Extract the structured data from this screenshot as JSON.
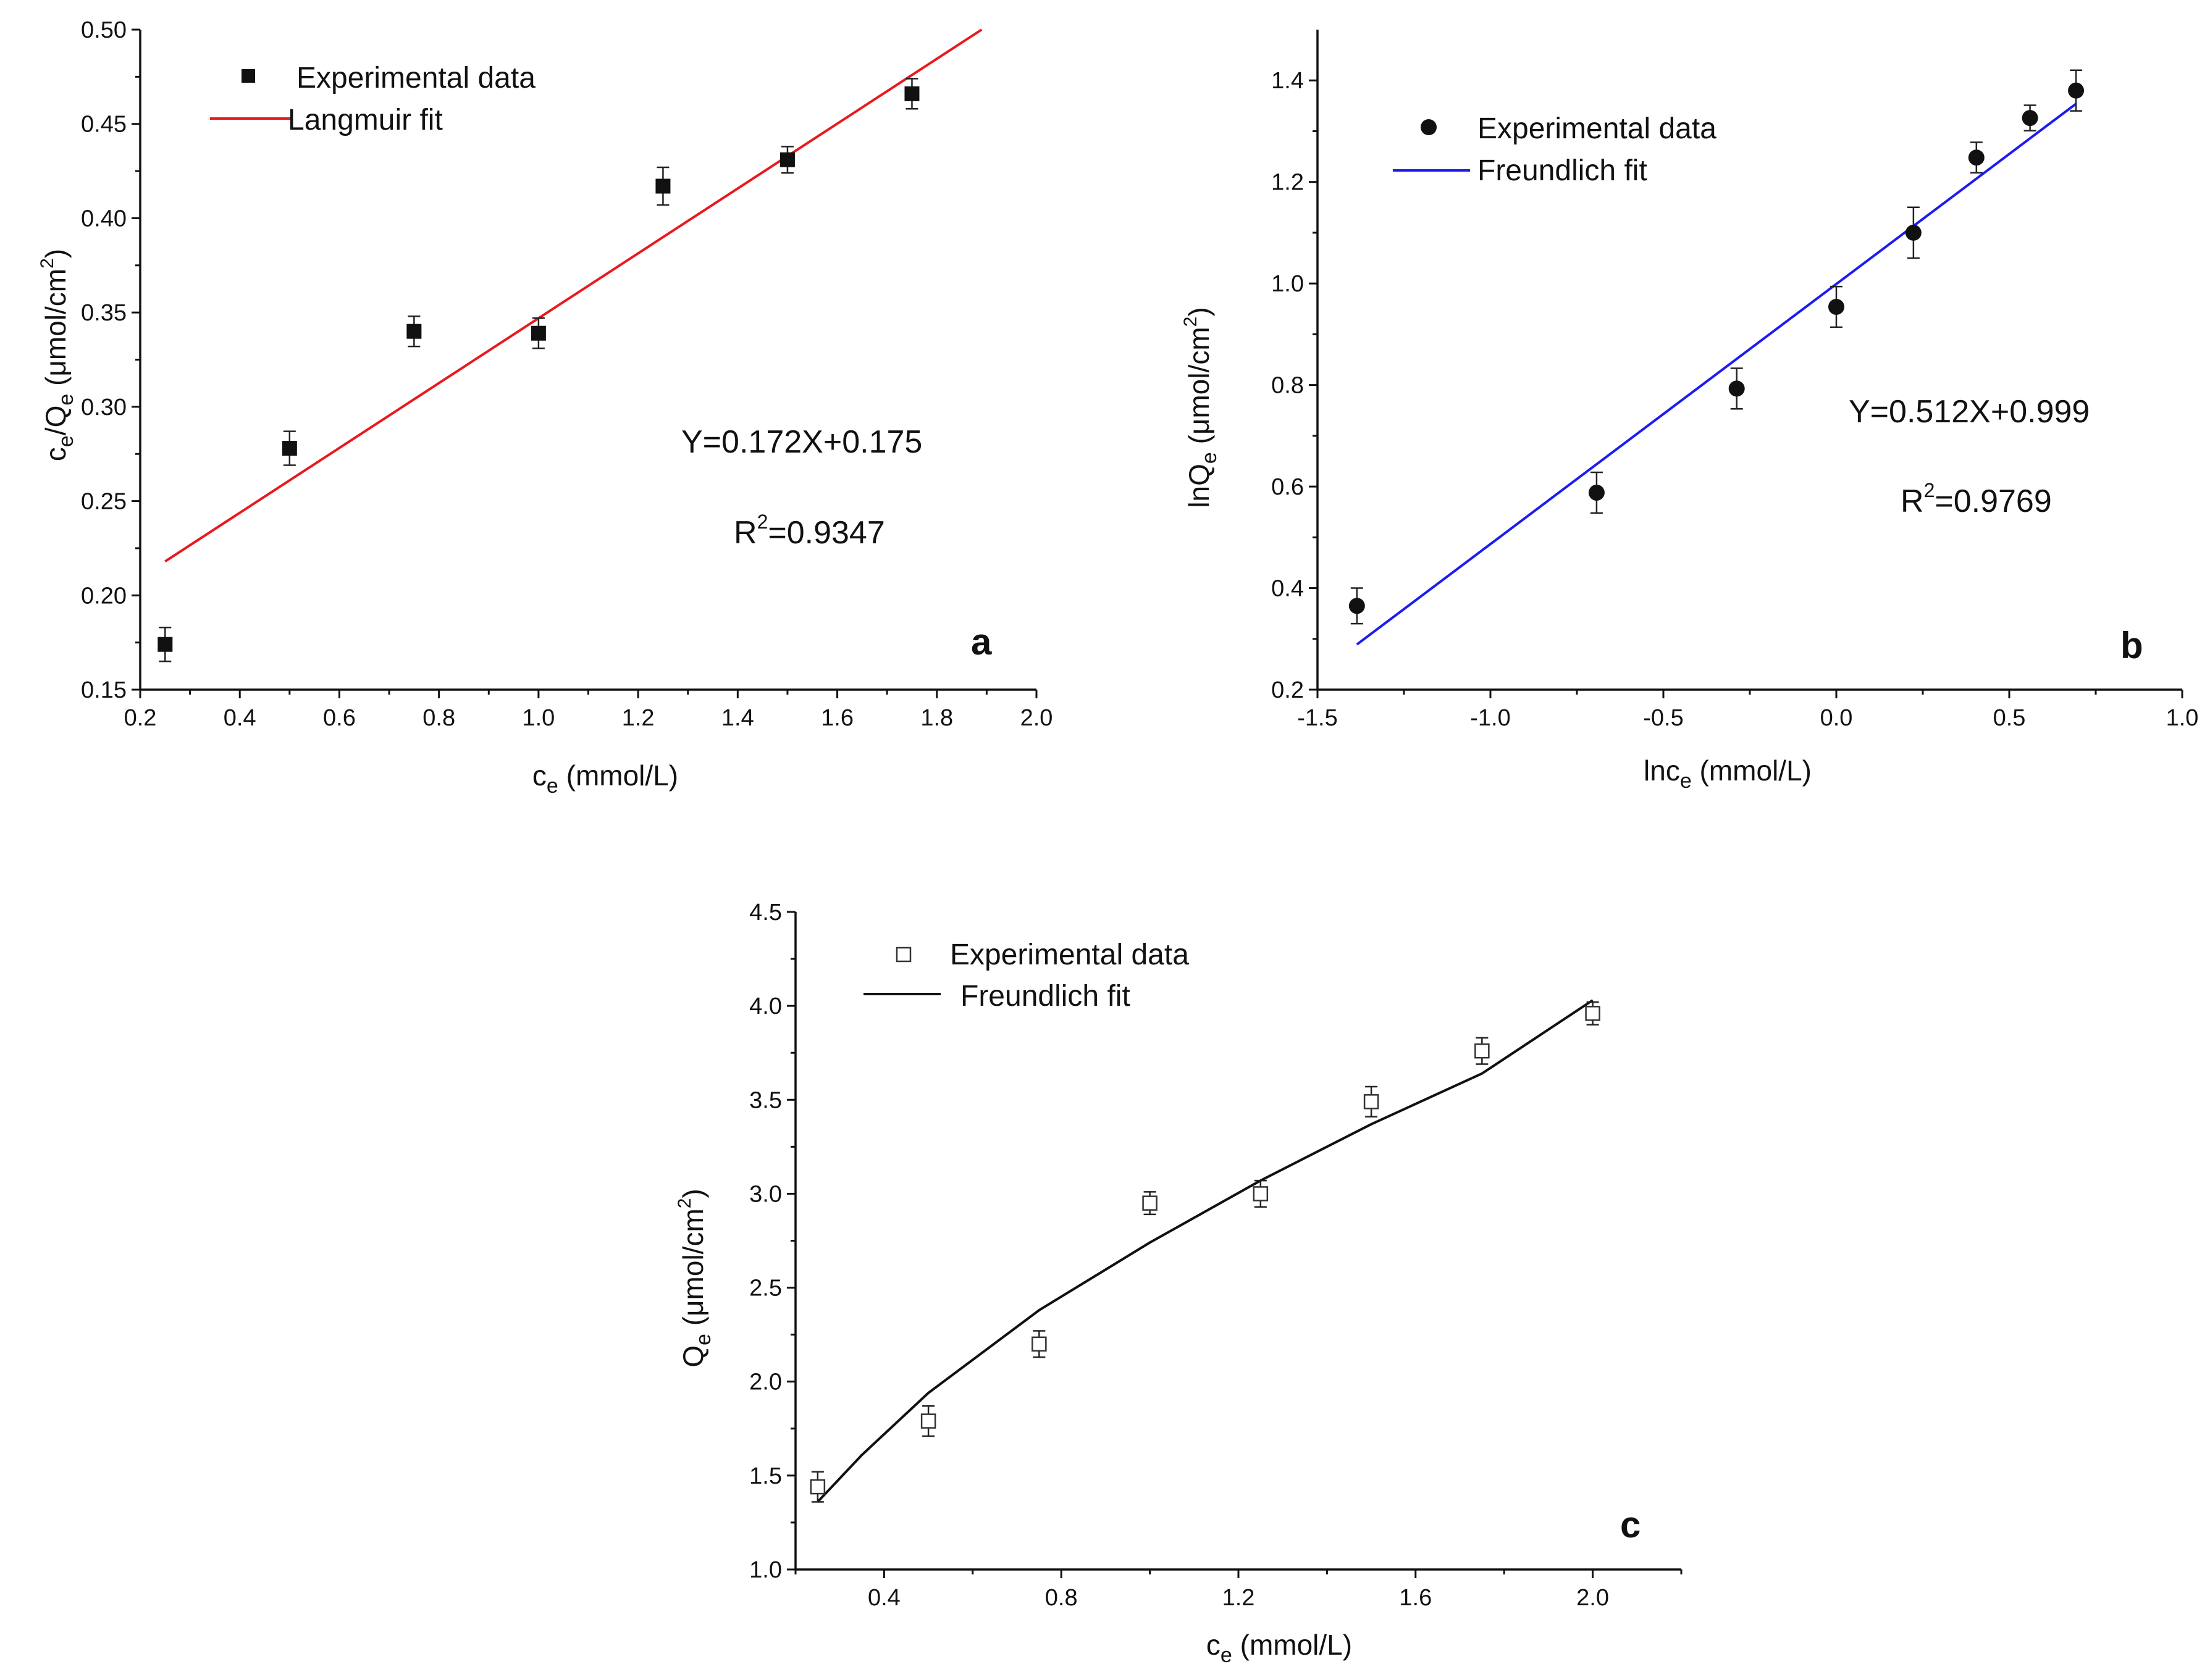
{
  "chart_data": [
    {
      "id": "a",
      "type": "scatter",
      "panel_letter": "a",
      "xlabel": {
        "base": "c",
        "sub": "e",
        "rest": " (mmol/L)"
      },
      "ylabel": {
        "a": "c",
        "a_sub": "e",
        "b": "/Q",
        "b_sub": "e",
        "c": " (μmol/cm",
        "c_sup": "2",
        "d": ")"
      },
      "xlim": [
        0.2,
        2.0
      ],
      "ylim": [
        0.15,
        0.5
      ],
      "xticks": [
        "0.2",
        "0.4",
        "0.6",
        "0.8",
        "1.0",
        "1.2",
        "1.4",
        "1.6",
        "1.8",
        "2.0"
      ],
      "yticks": [
        "0.15",
        "0.20",
        "0.25",
        "0.30",
        "0.35",
        "0.40",
        "0.45",
        "0.50"
      ],
      "legend": {
        "position": "top-left",
        "data_label": "Experimental data",
        "fit_label": "Langmuir fit"
      },
      "marker": "filled-square",
      "line_color": "#e8191e",
      "series": [
        {
          "name": "Experimental data",
          "x": [
            0.25,
            0.5,
            0.75,
            1.0,
            1.25,
            1.5,
            1.75
          ],
          "y": [
            0.174,
            0.278,
            0.34,
            0.339,
            0.417,
            0.431,
            0.466
          ],
          "err": [
            0.009,
            0.009,
            0.008,
            0.008,
            0.01,
            0.007,
            0.008
          ]
        },
        {
          "name": "Langmuir fit",
          "x": [
            0.25,
            1.89
          ],
          "y": [
            0.218,
            0.5
          ]
        }
      ],
      "annotations": {
        "equation": "Y=0.172X+0.175",
        "r2_label": "R",
        "r2_sup": "2",
        "r2_value": "=0.9347"
      }
    },
    {
      "id": "b",
      "type": "scatter",
      "panel_letter": "b",
      "xlabel": {
        "base": "lnc",
        "sub": "e",
        "rest": " (mmol/L)"
      },
      "ylabel": {
        "a": "lnQ",
        "a_sub": "e",
        "c": " (μmol/cm",
        "c_sup": "2",
        "d": ")"
      },
      "xlim": [
        -1.5,
        1.0
      ],
      "ylim": [
        0.2,
        1.5
      ],
      "xticks": [
        "-1.5",
        "-1.0",
        "-0.5",
        "0.0",
        "0.5",
        "1.0"
      ],
      "yticks": [
        "0.2",
        "0.4",
        "0.6",
        "0.8",
        "1.0",
        "1.2",
        "1.4"
      ],
      "legend": {
        "position": "top-left",
        "data_label": "Experimental data",
        "fit_label": "Freundlich fit"
      },
      "marker": "filled-circle",
      "line_color": "#1c1cf0",
      "series": [
        {
          "name": "Experimental data",
          "x": [
            -1.386,
            -0.693,
            -0.288,
            0.0,
            0.223,
            0.405,
            0.56,
            0.693
          ],
          "y": [
            0.365,
            0.588,
            0.793,
            0.954,
            1.1,
            1.248,
            1.326,
            1.38
          ],
          "err": [
            0.035,
            0.04,
            0.04,
            0.04,
            0.05,
            0.03,
            0.025,
            0.04
          ]
        },
        {
          "name": "Freundlich fit",
          "x": [
            -1.386,
            0.693
          ],
          "y": [
            0.289,
            1.354
          ]
        }
      ],
      "annotations": {
        "equation": "Y=0.512X+0.999",
        "r2_label": "R",
        "r2_sup": "2",
        "r2_value": "=0.9769"
      }
    },
    {
      "id": "c",
      "type": "scatter",
      "panel_letter": "c",
      "xlabel": {
        "base": "c",
        "sub": "e",
        "rest": " (mmol/L)"
      },
      "ylabel": {
        "a": "Q",
        "a_sub": "e",
        "c": " (μmol/cm",
        "c_sup": "2",
        "d": ")"
      },
      "xlim": [
        0.2,
        2.2
      ],
      "ylim": [
        1.0,
        4.5
      ],
      "xticks": [
        "0.4",
        "0.8",
        "1.2",
        "1.6",
        "2.0"
      ],
      "yticks": [
        "1.0",
        "1.5",
        "2.0",
        "2.5",
        "3.0",
        "3.5",
        "4.0",
        "4.5"
      ],
      "legend": {
        "position": "top-left",
        "data_label": "Experimental data",
        "fit_label": "Freundlich fit"
      },
      "marker": "open-square",
      "line_color": "#111111",
      "series": [
        {
          "name": "Experimental data",
          "x": [
            0.25,
            0.5,
            0.75,
            1.0,
            1.25,
            1.5,
            1.75,
            2.0
          ],
          "y": [
            1.44,
            1.79,
            2.2,
            2.95,
            3.0,
            3.49,
            3.76,
            3.96
          ],
          "err": [
            0.08,
            0.08,
            0.07,
            0.06,
            0.07,
            0.08,
            0.07,
            0.06
          ]
        },
        {
          "name": "Freundlich fit",
          "x": [
            0.25,
            0.35,
            0.5,
            0.75,
            1.0,
            1.25,
            1.5,
            1.75,
            2.0
          ],
          "y": [
            1.36,
            1.61,
            1.94,
            2.38,
            2.74,
            3.07,
            3.37,
            3.64,
            4.03
          ]
        }
      ],
      "annotations": {}
    }
  ]
}
